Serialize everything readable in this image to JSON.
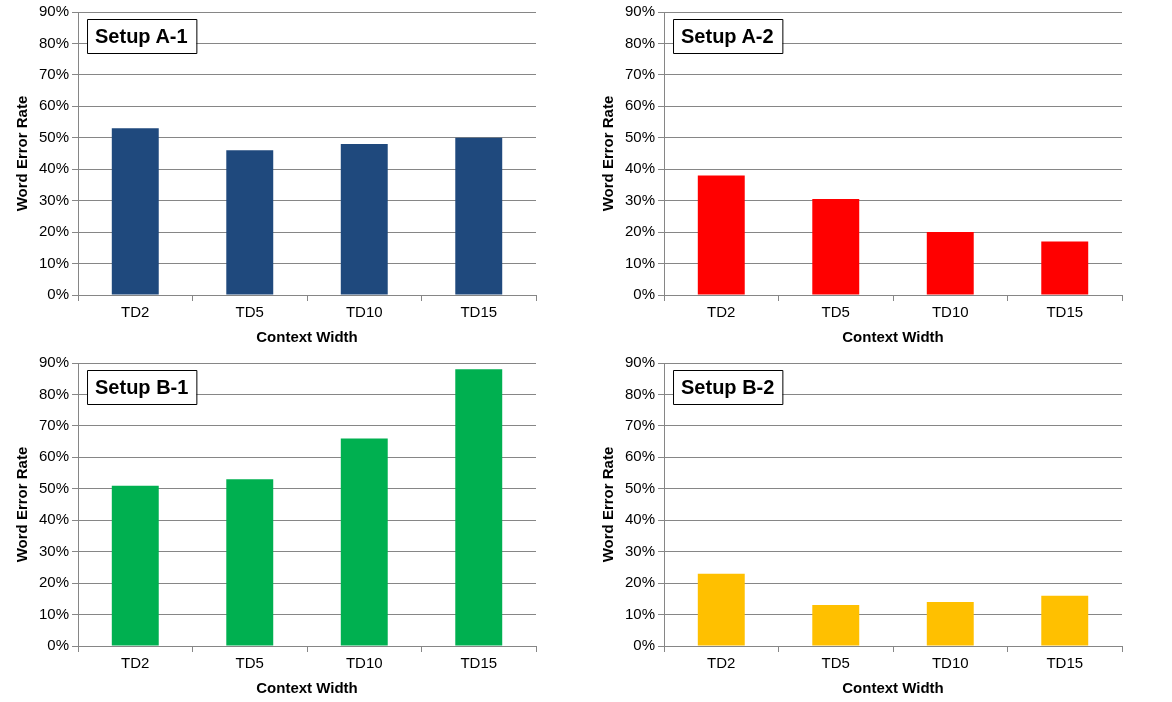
{
  "chart_data": [
    {
      "type": "bar",
      "title": "Setup A-1",
      "xlabel": "Context Width",
      "ylabel": "Word Error Rate",
      "categories": [
        "TD2",
        "TD5",
        "TD10",
        "TD15"
      ],
      "values": [
        53,
        46,
        48,
        50
      ],
      "color": "#1f497d",
      "ylim": [
        0,
        90
      ],
      "yticks": [
        {
          "value": 0,
          "label": "0%"
        },
        {
          "value": 10,
          "label": "10%"
        },
        {
          "value": 20,
          "label": "20%"
        },
        {
          "value": 30,
          "label": "30%"
        },
        {
          "value": 40,
          "label": "40%"
        },
        {
          "value": 50,
          "label": "50%"
        },
        {
          "value": 60,
          "label": "60%"
        },
        {
          "value": 70,
          "label": "70%"
        },
        {
          "value": 80,
          "label": "80%"
        },
        {
          "value": 90,
          "label": "90%"
        }
      ],
      "grid": "y"
    },
    {
      "type": "bar",
      "title": "Setup A-2",
      "xlabel": "Context Width",
      "ylabel": "Word Error Rate",
      "categories": [
        "TD2",
        "TD5",
        "TD10",
        "TD15"
      ],
      "values": [
        38,
        30.5,
        20,
        17
      ],
      "color": "#ff0000",
      "ylim": [
        0,
        90
      ],
      "yticks": [
        {
          "value": 0,
          "label": "0%"
        },
        {
          "value": 10,
          "label": "10%"
        },
        {
          "value": 20,
          "label": "20%"
        },
        {
          "value": 30,
          "label": "30%"
        },
        {
          "value": 40,
          "label": "40%"
        },
        {
          "value": 50,
          "label": "50%"
        },
        {
          "value": 60,
          "label": "60%"
        },
        {
          "value": 70,
          "label": "70%"
        },
        {
          "value": 80,
          "label": "80%"
        },
        {
          "value": 90,
          "label": "90%"
        }
      ],
      "grid": "y"
    },
    {
      "type": "bar",
      "title": "Setup B-1",
      "xlabel": "Context Width",
      "ylabel": "Word Error Rate",
      "categories": [
        "TD2",
        "TD5",
        "TD10",
        "TD15"
      ],
      "values": [
        51,
        53,
        66,
        88
      ],
      "color": "#00b050",
      "ylim": [
        0,
        90
      ],
      "yticks": [
        {
          "value": 0,
          "label": "0%"
        },
        {
          "value": 10,
          "label": "10%"
        },
        {
          "value": 20,
          "label": "20%"
        },
        {
          "value": 30,
          "label": "30%"
        },
        {
          "value": 40,
          "label": "40%"
        },
        {
          "value": 50,
          "label": "50%"
        },
        {
          "value": 60,
          "label": "60%"
        },
        {
          "value": 70,
          "label": "70%"
        },
        {
          "value": 80,
          "label": "80%"
        },
        {
          "value": 90,
          "label": "90%"
        }
      ],
      "grid": "y"
    },
    {
      "type": "bar",
      "title": "Setup B-2",
      "xlabel": "Context Width",
      "ylabel": "Word Error Rate",
      "categories": [
        "TD2",
        "TD5",
        "TD10",
        "TD15"
      ],
      "values": [
        23,
        13,
        14,
        16
      ],
      "color": "#ffc000",
      "ylim": [
        0,
        90
      ],
      "yticks": [
        {
          "value": 0,
          "label": "0%"
        },
        {
          "value": 10,
          "label": "10%"
        },
        {
          "value": 20,
          "label": "20%"
        },
        {
          "value": 30,
          "label": "30%"
        },
        {
          "value": 40,
          "label": "40%"
        },
        {
          "value": 50,
          "label": "50%"
        },
        {
          "value": 60,
          "label": "60%"
        },
        {
          "value": 70,
          "label": "70%"
        },
        {
          "value": 80,
          "label": "80%"
        },
        {
          "value": 90,
          "label": "90%"
        }
      ],
      "grid": "y"
    }
  ]
}
